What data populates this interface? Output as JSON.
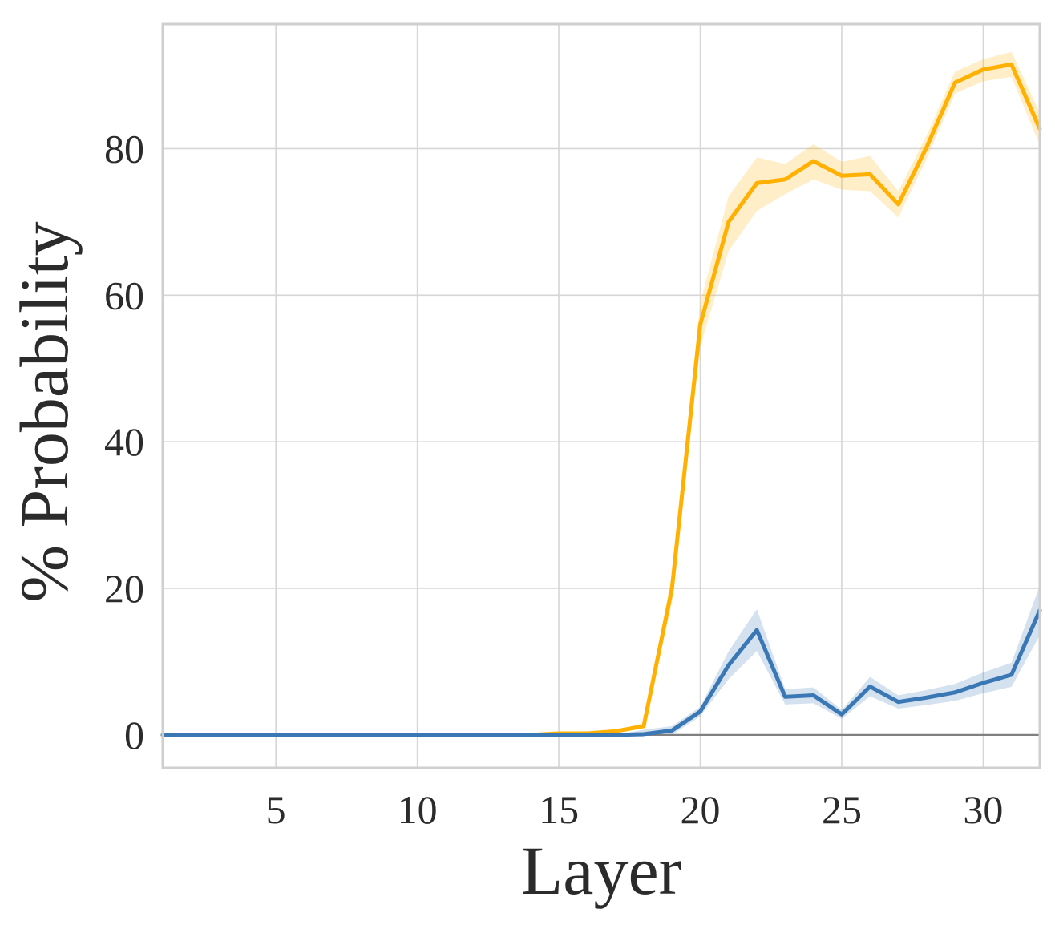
{
  "chart_data": {
    "type": "line",
    "title": "",
    "xlabel": "Layer",
    "ylabel": "% Probability",
    "xlim": [
      1,
      32
    ],
    "ylim": [
      -4.5,
      97
    ],
    "xticks": [
      5,
      10,
      15,
      20,
      25,
      30
    ],
    "yticks": [
      0,
      20,
      40,
      60,
      80
    ],
    "xtick_labels": [
      "5",
      "10",
      "15",
      "20",
      "25",
      "30"
    ],
    "ytick_labels": [
      "0",
      "20",
      "40",
      "60",
      "80"
    ],
    "grid": true,
    "legend": "none",
    "reference_line_y": 0,
    "x": [
      1,
      2,
      3,
      4,
      5,
      6,
      7,
      8,
      9,
      10,
      11,
      12,
      13,
      14,
      15,
      16,
      17,
      18,
      19,
      20,
      21,
      22,
      23,
      24,
      25,
      26,
      27,
      28,
      29,
      30,
      31,
      32
    ],
    "series": [
      {
        "color": "#ffb000",
        "band_color": "#ffb000",
        "values": [
          0,
          0,
          0,
          0,
          0,
          0,
          0,
          0,
          0,
          0,
          0,
          0,
          0,
          0,
          0.2,
          0.2,
          0.5,
          1.2,
          20,
          56,
          70,
          75.3,
          75.8,
          78.3,
          76.3,
          76.5,
          72.4,
          80.2,
          89,
          90.8,
          91.5,
          82.7
        ],
        "lower": [
          0,
          0,
          0,
          0,
          0,
          0,
          0,
          0,
          0,
          0,
          0,
          0,
          0,
          0,
          0.1,
          0.1,
          0.3,
          0.9,
          18,
          53,
          66,
          71.5,
          73.8,
          75.8,
          74.4,
          74.2,
          70.6,
          78.6,
          87.5,
          89.2,
          89.8,
          80.5
        ],
        "upper": [
          0,
          0,
          0,
          0,
          0,
          0,
          0,
          0,
          0,
          0,
          0,
          0,
          0,
          0,
          0.3,
          0.3,
          0.7,
          1.6,
          22,
          59,
          73.5,
          78.8,
          77.9,
          80.6,
          78.2,
          79,
          74.2,
          81.8,
          90.5,
          92.2,
          93.2,
          84.9
        ]
      },
      {
        "color": "#3a78b5",
        "band_color": "#3a78b5",
        "values": [
          0,
          0,
          0,
          0,
          0,
          0,
          0,
          0,
          0,
          0,
          0,
          0,
          0,
          0,
          0,
          0,
          0,
          0.1,
          0.6,
          3.2,
          9.5,
          14.3,
          5.2,
          5.4,
          2.8,
          6.6,
          4.5,
          5.1,
          5.8,
          7.1,
          8.2,
          17
        ]
      }
    ]
  }
}
